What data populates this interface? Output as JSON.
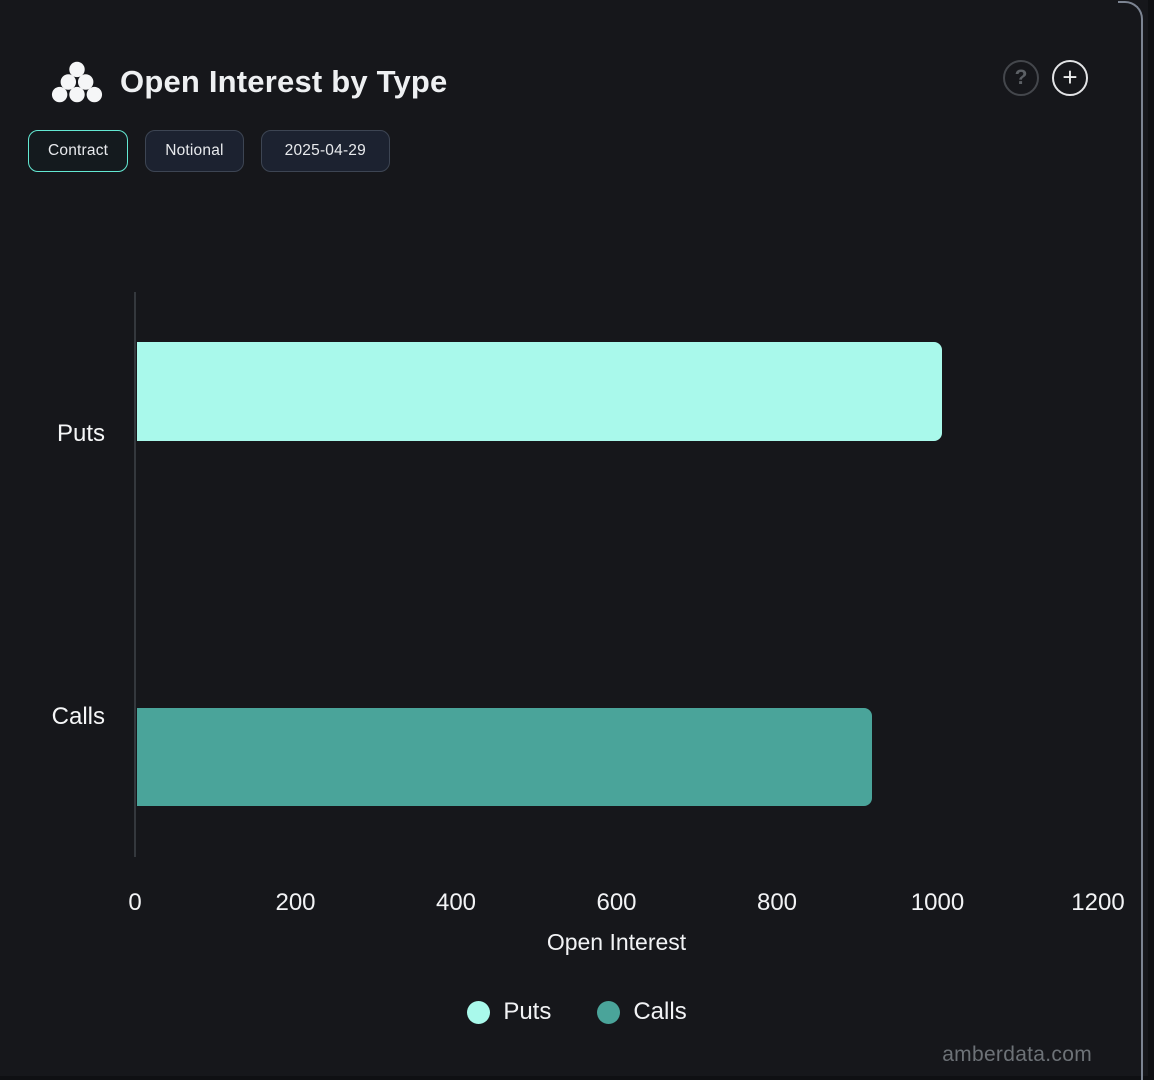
{
  "header": {
    "title": "Open Interest by Type",
    "help_label": "?",
    "add_label": "+"
  },
  "toolbar": {
    "buttons": [
      {
        "label": "Contract",
        "active": true
      },
      {
        "label": "Notional",
        "active": false
      },
      {
        "label": "2025-04-29",
        "active": false
      }
    ]
  },
  "colors": {
    "card_background": "#16171b",
    "card_border": "#7c8492",
    "active_button_border": "#63e9d3",
    "button_border": "#3d4553",
    "button_background": "#1c2230",
    "axis_line": "#34383d",
    "text": "#f2f3f5",
    "muted_text": "#6d7277",
    "puts": "#a9f9eb",
    "calls": "#4aa49a"
  },
  "chart_data": {
    "type": "bar",
    "orientation": "horizontal",
    "title": "Open Interest by Type",
    "categories": [
      "Puts",
      "Calls"
    ],
    "values": [
      1006,
      919
    ],
    "bar_colors": [
      "#a9f9eb",
      "#4aa49a"
    ],
    "xlabel": "Open Interest",
    "xlim": [
      0,
      1200
    ],
    "xticks": [
      0,
      200,
      400,
      600,
      800,
      1000,
      1200
    ],
    "grid": false,
    "legend": {
      "position": "bottom",
      "entries": [
        {
          "label": "Puts",
          "color": "#a9f9eb"
        },
        {
          "label": "Calls",
          "color": "#4aa49a"
        }
      ]
    }
  },
  "watermark": "amberdata.com"
}
